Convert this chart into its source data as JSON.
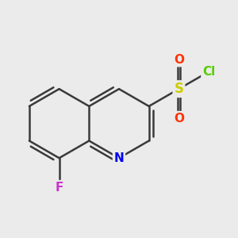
{
  "background_color": "#ebebeb",
  "bond_color": "#3a3a3a",
  "bond_width": 1.8,
  "atom_colors": {
    "N": "#0000ee",
    "F": "#cc33cc",
    "S": "#cccc00",
    "O": "#ff3300",
    "Cl": "#55cc00"
  },
  "font_size": 11,
  "atom_font_bold": true
}
